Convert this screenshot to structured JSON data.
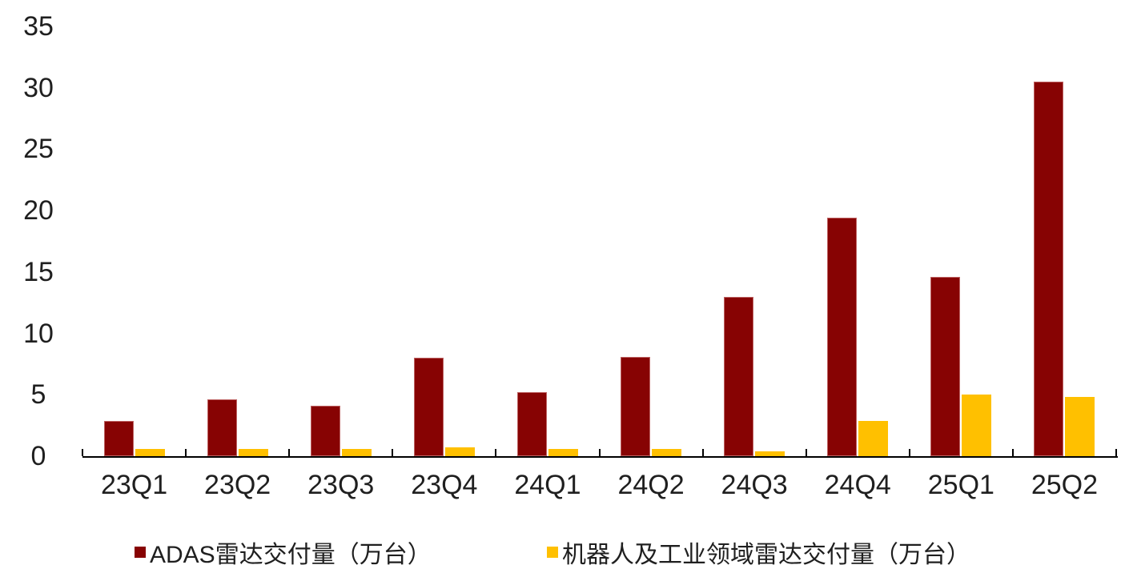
{
  "chart_data": {
    "type": "bar",
    "categories": [
      "23Q1",
      "23Q2",
      "23Q3",
      "23Q4",
      "24Q1",
      "24Q2",
      "24Q3",
      "24Q4",
      "25Q1",
      "25Q2"
    ],
    "series": [
      {
        "name": "ADAS雷达交付量（万台）",
        "color": "#870303",
        "values": [
          2.9,
          4.6,
          4.1,
          8.0,
          5.2,
          8.1,
          13.0,
          19.4,
          14.6,
          30.5
        ]
      },
      {
        "name": "机器人及工业领域雷达交付量（万台）",
        "color": "#FFC000",
        "values": [
          0.6,
          0.6,
          0.6,
          0.7,
          0.6,
          0.6,
          0.4,
          2.9,
          5.0,
          4.8
        ]
      }
    ],
    "title": "",
    "xlabel": "",
    "ylabel": "",
    "ylim": [
      0,
      35
    ],
    "y_ticks": [
      0,
      5,
      10,
      15,
      20,
      25,
      30,
      35
    ],
    "grid": false,
    "legend_position": "bottom",
    "axis_color": "#000000",
    "text_color": "#1f1f1f",
    "background_color": "#ffffff"
  }
}
